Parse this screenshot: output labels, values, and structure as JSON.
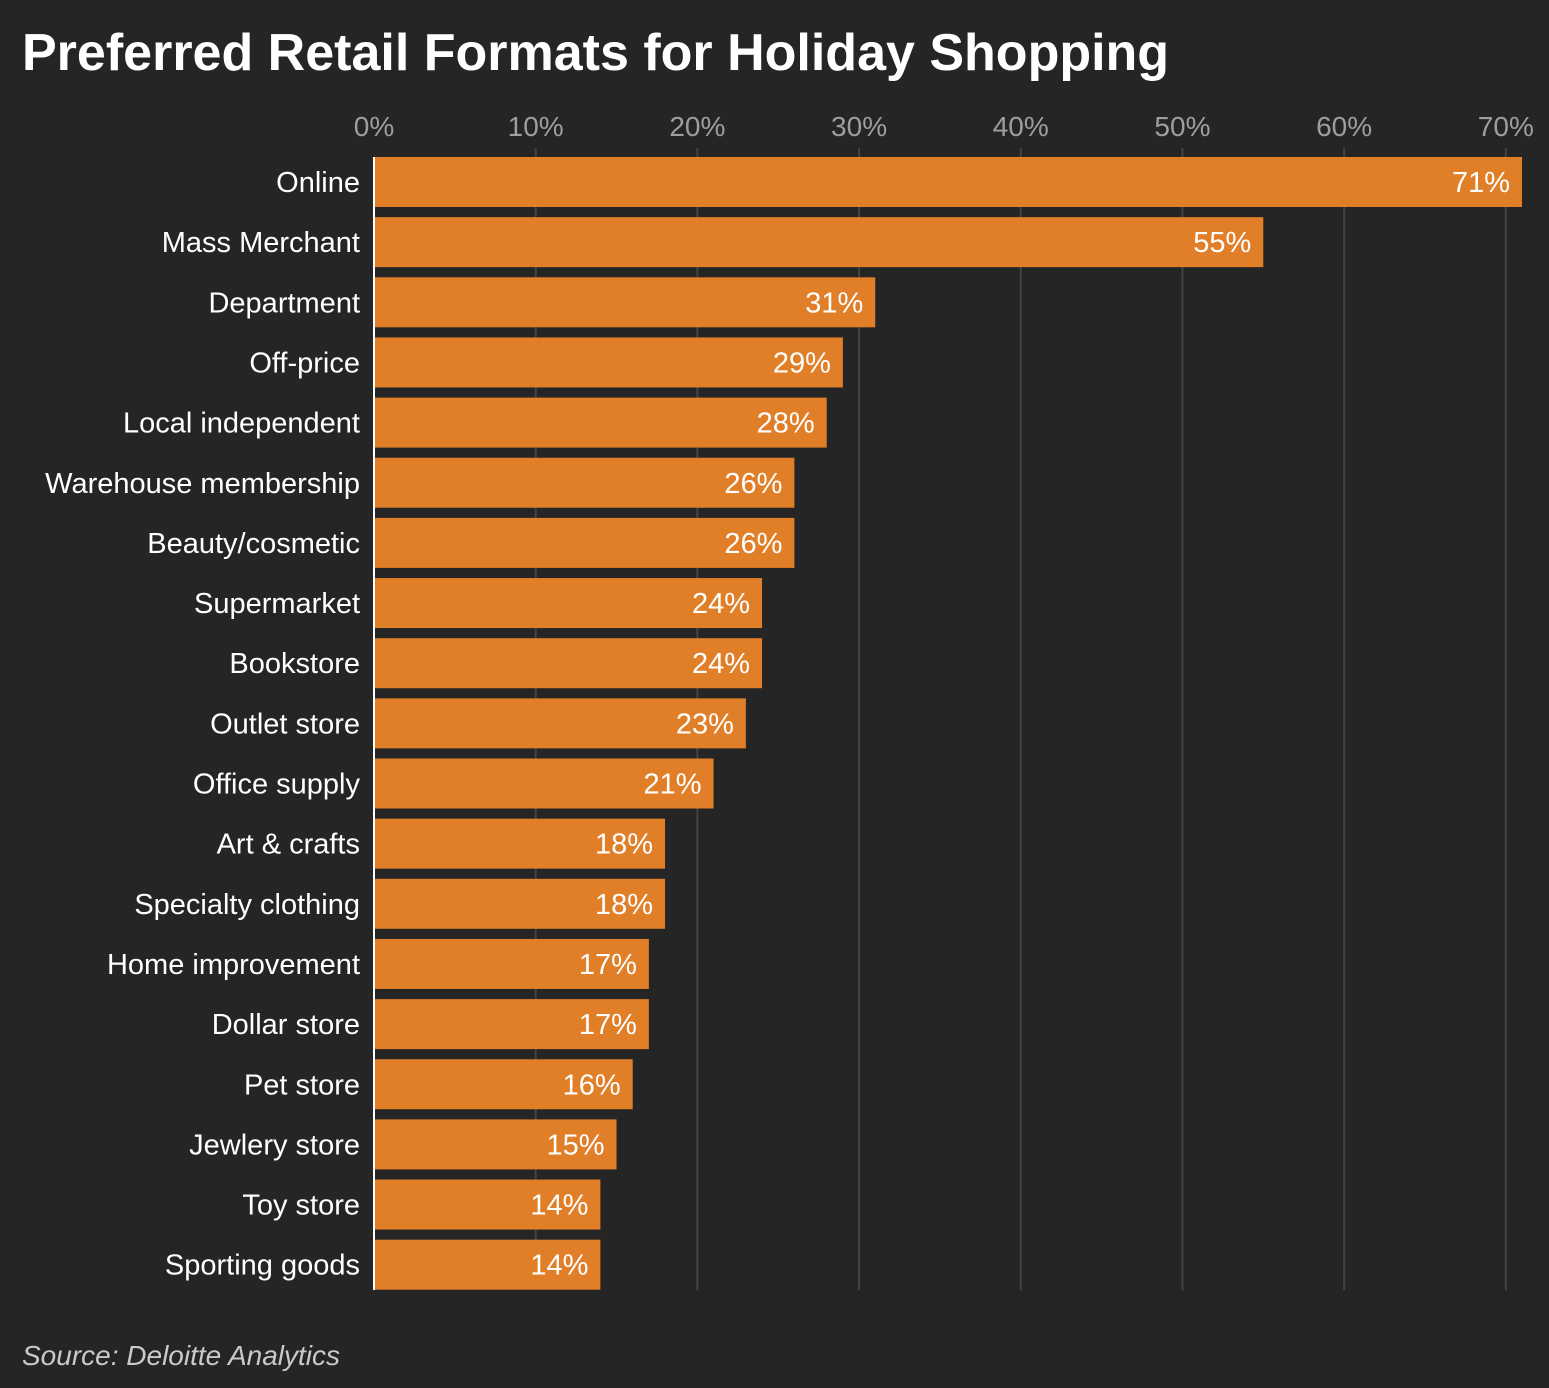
{
  "chart_data": {
    "type": "bar",
    "orientation": "horizontal",
    "title": "Preferred Retail Formats for Holiday Shopping",
    "source": "Source: Deloitte Analytics",
    "categories": [
      "Online",
      "Mass Merchant",
      "Department",
      "Off-price",
      "Local independent",
      "Warehouse membership",
      "Beauty/cosmetic",
      "Supermarket",
      "Bookstore",
      "Outlet store",
      "Office supply",
      "Art & crafts",
      "Specialty clothing",
      "Home improvement",
      "Dollar store",
      "Pet store",
      "Jewlery store",
      "Toy store",
      "Sporting goods"
    ],
    "values": [
      71,
      55,
      31,
      29,
      28,
      26,
      26,
      24,
      24,
      23,
      21,
      18,
      18,
      17,
      17,
      16,
      15,
      14,
      14
    ],
    "value_labels": [
      "71%",
      "55%",
      "31%",
      "29%",
      "28%",
      "26%",
      "26%",
      "24%",
      "24%",
      "23%",
      "21%",
      "18%",
      "18%",
      "17%",
      "17%",
      "16%",
      "15%",
      "14%",
      "14%"
    ],
    "x_ticks": [
      0,
      10,
      20,
      30,
      40,
      50,
      60,
      70
    ],
    "x_tick_labels": [
      "0%",
      "10%",
      "20%",
      "30%",
      "40%",
      "50%",
      "60%",
      "70%"
    ],
    "xlim": [
      0,
      71
    ],
    "axis_position": "top",
    "grid": true,
    "legend": "none",
    "colors": {
      "bar": "#e07f27",
      "background": "#252525",
      "grid": "#444444",
      "axis": "#ffffff"
    }
  }
}
